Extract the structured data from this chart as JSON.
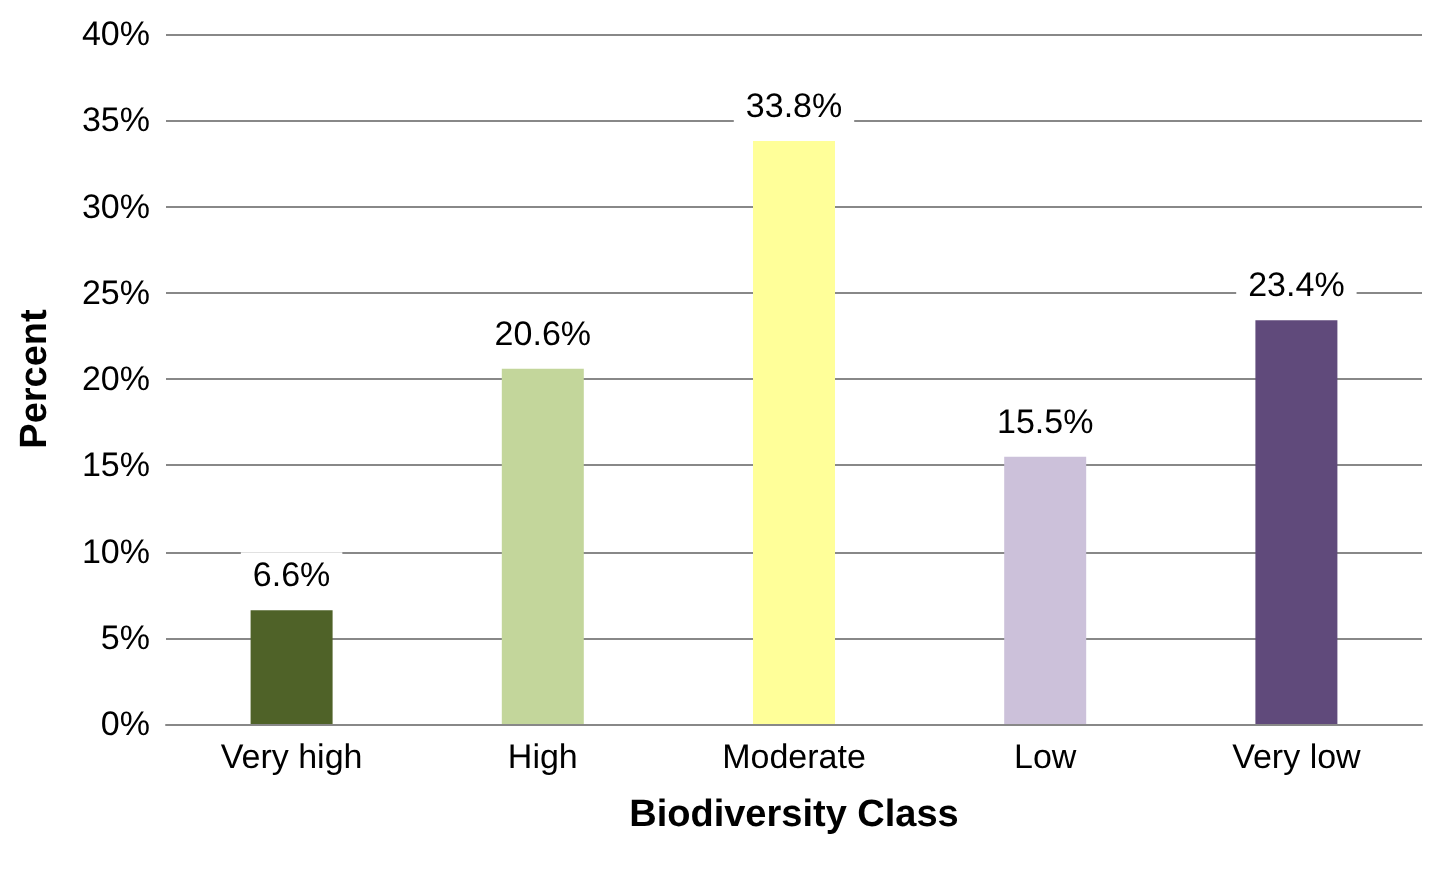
{
  "chart_data": {
    "type": "bar",
    "xlabel": "Biodiversity Class",
    "ylabel": "Percent",
    "categories": [
      "Very high",
      "High",
      "Moderate",
      "Low",
      "Very low"
    ],
    "values": [
      6.6,
      20.6,
      33.8,
      15.5,
      23.4
    ],
    "colors": [
      "#4f6228",
      "#c3d69b",
      "#ffff99",
      "#ccc1da",
      "#604a7b"
    ],
    "value_labels": [
      "6.6%",
      "20.6%",
      "33.8%",
      "15.5%",
      "23.4%"
    ],
    "ylim": [
      0,
      40
    ],
    "yticks": [
      {
        "value": 0,
        "label": "0%"
      },
      {
        "value": 5,
        "label": "5%"
      },
      {
        "value": 10,
        "label": "10%"
      },
      {
        "value": 15,
        "label": "15%"
      },
      {
        "value": 20,
        "label": "20%"
      },
      {
        "value": 25,
        "label": "25%"
      },
      {
        "value": 30,
        "label": "30%"
      },
      {
        "value": 35,
        "label": "35%"
      },
      {
        "value": 40,
        "label": "40%"
      }
    ],
    "grid": "y"
  }
}
